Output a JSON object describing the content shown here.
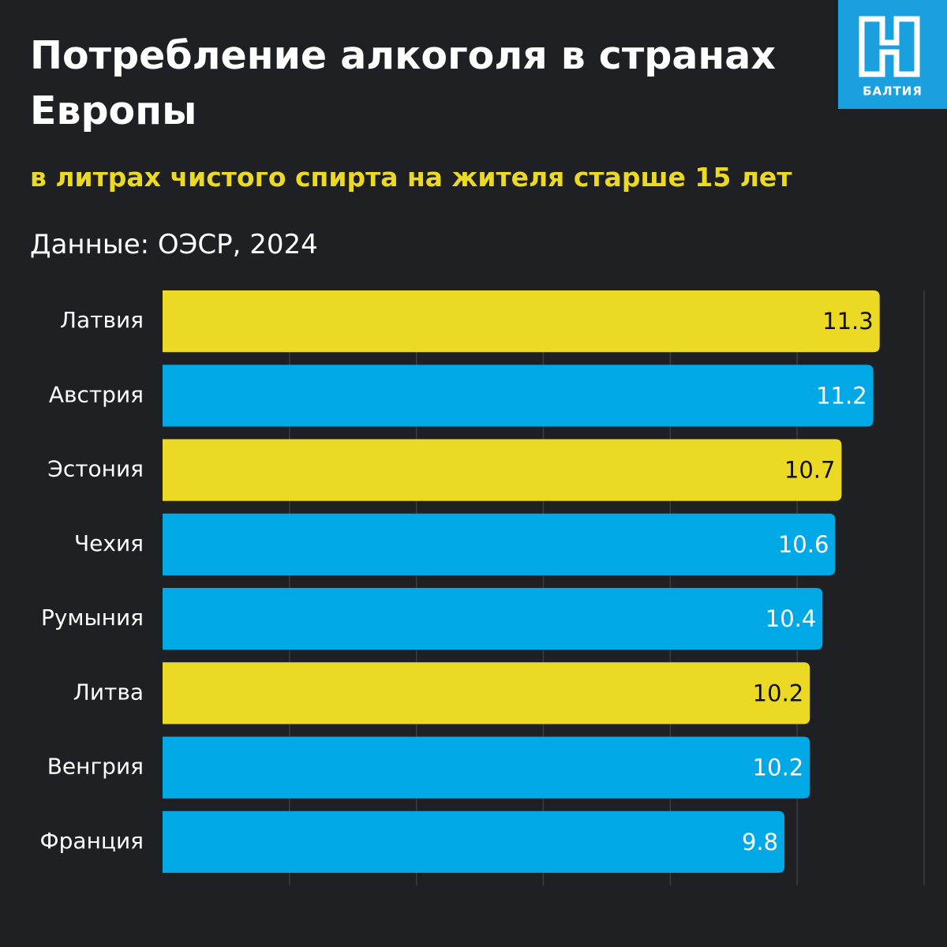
{
  "chart_data": {
    "type": "barh",
    "title": "Потребление алкоголя в странах Европы",
    "subtitle": "в литрах чистого спирта на жителя старше 15 лет",
    "source": "Данные: ОЭСР, 2024",
    "logo": "БАЛТИЯ",
    "categories": [
      "Латвия",
      "Австрия",
      "Эстония",
      "Чехия",
      "Румыния",
      "Литва",
      "Венгрия",
      "Франция"
    ],
    "values": [
      11.3,
      11.2,
      10.7,
      10.6,
      10.4,
      10.2,
      10.2,
      9.8
    ],
    "colors": [
      "#ecd923",
      "#00a9e5",
      "#ecd923",
      "#00a9e5",
      "#00a9e5",
      "#ecd923",
      "#00a9e5",
      "#00a9e5"
    ],
    "xlim": [
      0,
      12
    ],
    "xticks": [
      2,
      4,
      6,
      8,
      10,
      12
    ],
    "grid": true
  }
}
